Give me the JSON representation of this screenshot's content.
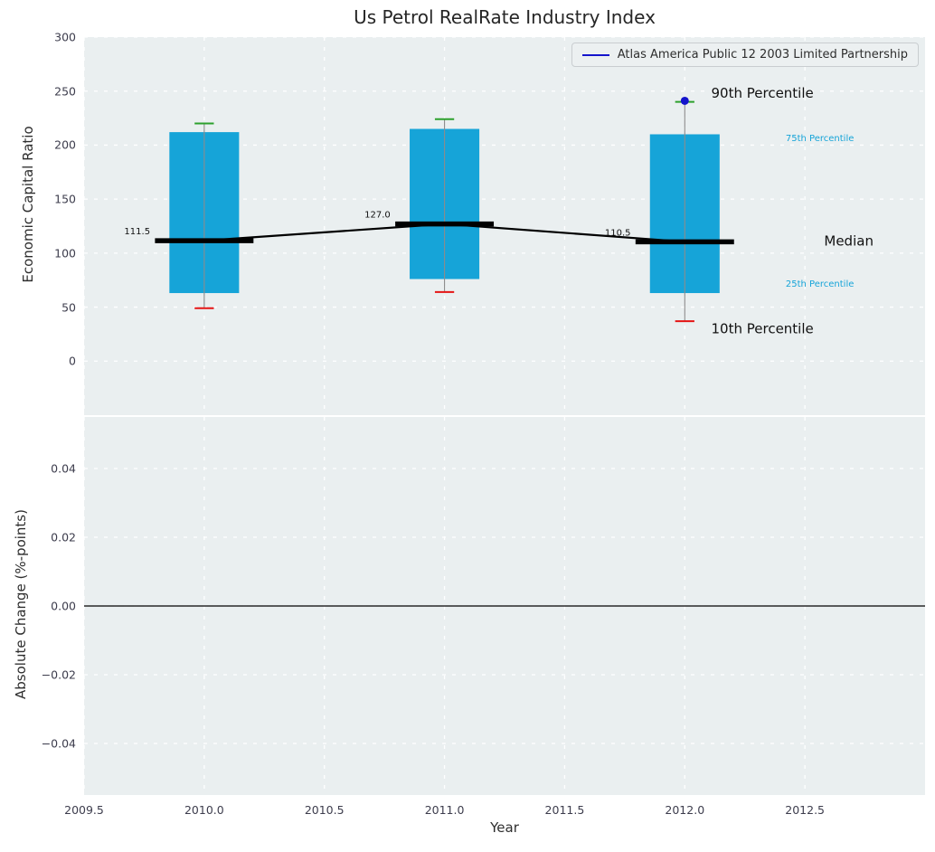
{
  "chart_data": [
    {
      "type": "boxplot",
      "title": "Us Petrol RealRate Industry Index",
      "ylabel": "Economic Capital Ratio",
      "xlim": [
        2009.5,
        2013.0
      ],
      "ylim": [
        -50,
        300
      ],
      "xticks": [
        2009.5,
        2010.0,
        2010.5,
        2011.0,
        2011.5,
        2012.0,
        2012.5
      ],
      "yticks": [
        0,
        50,
        100,
        150,
        200,
        250,
        300
      ],
      "ytick_labels": [
        "0",
        "50",
        "100",
        "150",
        "200",
        "250",
        "300"
      ],
      "grid": true,
      "legend": {
        "label": "Atlas America Public 12 2003 Limited Partnership",
        "position": "upper right",
        "line_color": "#1414cc"
      },
      "boxes": [
        {
          "x": 2010,
          "p10": 49,
          "p25": 63,
          "median": 111.5,
          "p75": 212,
          "p90": 220,
          "median_label": "111.5"
        },
        {
          "x": 2011,
          "p10": 64,
          "p25": 76,
          "median": 127.0,
          "p75": 215,
          "p90": 224,
          "median_label": "127.0"
        },
        {
          "x": 2012,
          "p10": 37,
          "p25": 63,
          "median": 110.5,
          "p75": 210,
          "p90": 240,
          "median_label": "110.5"
        }
      ],
      "median_line": {
        "x": [
          2010,
          2011,
          2012
        ],
        "y": [
          111.5,
          127.0,
          110.5
        ]
      },
      "company_point": {
        "x": 2012,
        "y": 241
      },
      "annotations": [
        {
          "id": "90th-percentile",
          "text": "90th Percentile",
          "x": 2012.11,
          "y": 248,
          "color": "#111111",
          "size": 15
        },
        {
          "id": "75th-percentile",
          "text": "75th Percentile",
          "x": 2012.42,
          "y": 206,
          "color": "#16a4d8",
          "size": 10
        },
        {
          "id": "median",
          "text": "Median",
          "x": 2012.58,
          "y": 111,
          "color": "#111111",
          "size": 15
        },
        {
          "id": "25th-percentile",
          "text": "25th Percentile",
          "x": 2012.42,
          "y": 71,
          "color": "#16a4d8",
          "size": 10
        },
        {
          "id": "10th-percentile",
          "text": "10th Percentile",
          "x": 2012.11,
          "y": 30,
          "color": "#111111",
          "size": 15
        }
      ],
      "colors": {
        "box": "#16a4d8",
        "median": "#000000",
        "p90_cap": "#2ca02c",
        "p10_cap": "#e41414",
        "whisker": "#8c8c8c",
        "company": "#1414cc"
      }
    },
    {
      "type": "line",
      "xlabel": "Year",
      "ylabel": "Absolute Change (%-points)",
      "xlim": [
        2009.5,
        2013.0
      ],
      "ylim": [
        -0.055,
        0.055
      ],
      "xticks": [
        2009.5,
        2010.0,
        2010.5,
        2011.0,
        2011.5,
        2012.0,
        2012.5
      ],
      "xtick_labels": [
        "2009.5",
        "2010.0",
        "2010.5",
        "2011.0",
        "2011.5",
        "2012.0",
        "2012.5"
      ],
      "yticks": [
        -0.04,
        -0.02,
        0.0,
        0.02,
        0.04
      ],
      "ytick_labels": [
        "−0.04",
        "−0.02",
        "0.00",
        "0.02",
        "0.04"
      ],
      "zero_line": 0.0,
      "grid": true
    }
  ]
}
